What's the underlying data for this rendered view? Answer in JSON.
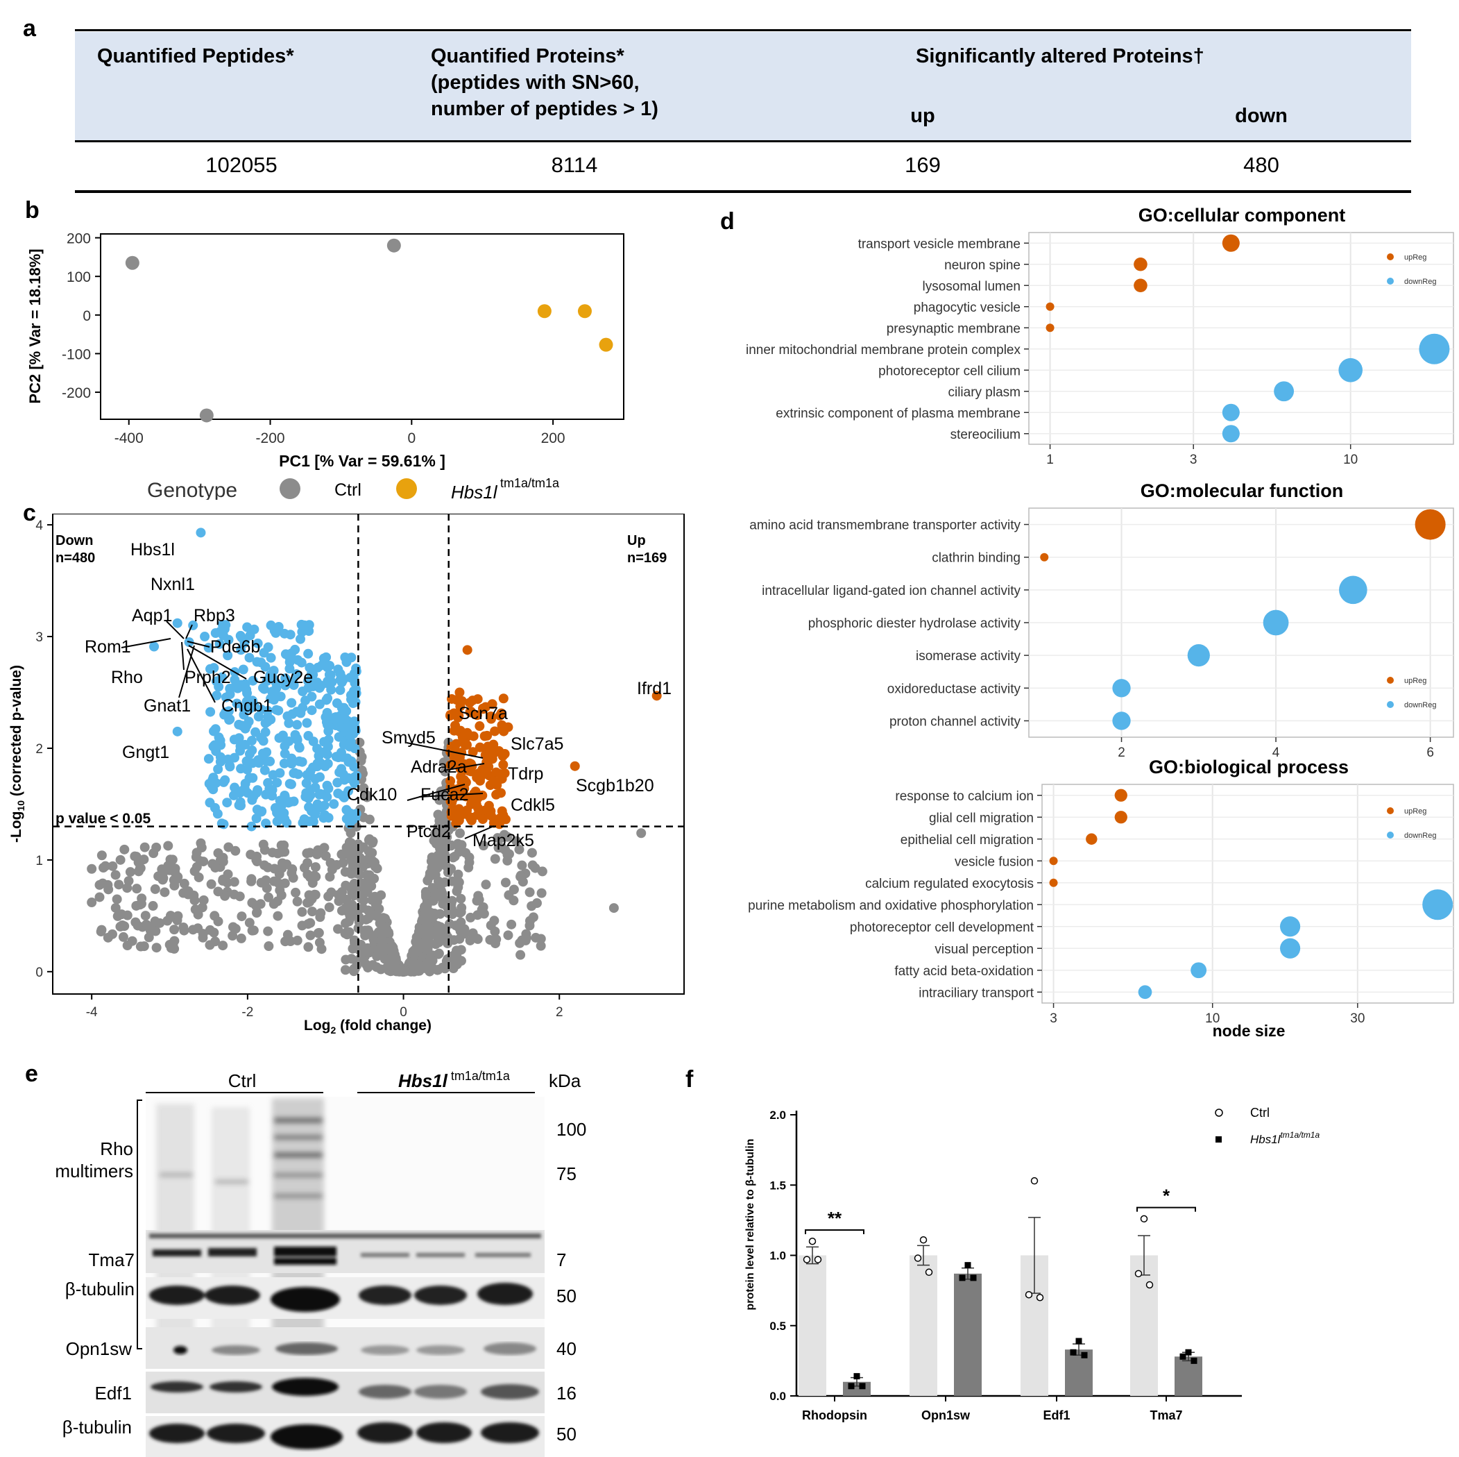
{
  "panels": {
    "a": "a",
    "b": "b",
    "c": "c",
    "d": "d",
    "e": "e",
    "f": "f"
  },
  "table": {
    "col1": "Quantified Peptides*",
    "col2_line1": "Quantified Proteins*",
    "col2_line2": "(peptides with SN>60,",
    "col2_line3": "number of peptides > 1)",
    "col3": "Significantly altered Proteins†",
    "sub_up": "up",
    "sub_down": "down",
    "values": [
      "102055",
      "8114",
      "169",
      "480"
    ]
  },
  "pca": {
    "ylabel": "PC2 [% Var = 18.18%]",
    "xlabel": "PC1 [% Var = 59.61% ]",
    "xticks": [
      "-400",
      "-200",
      "0",
      "200"
    ],
    "yticks": [
      "200",
      "100",
      "0",
      "-100",
      "-200"
    ],
    "legend_title": "Genotype",
    "legend_ctrl": "Ctrl",
    "legend_mut": "Hbs1l",
    "legend_mut_sup": "tm1a/tm1a",
    "colors": {
      "ctrl": "#8c8c8c",
      "mut": "#e8a20e"
    }
  },
  "volcano": {
    "ylabel_pre": "-Log",
    "ylabel_sub": "10",
    "ylabel_post": " (corrected p-value)",
    "xlabel_pre": "Log",
    "xlabel_sub": "2",
    "xlabel_post": " (fold change)",
    "xticks": [
      "-4",
      "-2",
      "0",
      "2"
    ],
    "yticks": [
      "4",
      "3",
      "2",
      "1",
      "0"
    ],
    "down_label": "Down",
    "down_n": "n=480",
    "up_label": "Up",
    "up_n": "n=169",
    "pvalue_label": "p value < 0.05",
    "genes": [
      "Hbs1l",
      "Nxnl1",
      "Aqp1",
      "Rbp3",
      "Rom1",
      "Pde6b",
      "Rho",
      "Prph2",
      "Gucy2e",
      "Gnat1",
      "Cngb1",
      "Gngt1",
      "Ifrd1",
      "Scn7a",
      "Smyd5",
      "Slc7a5",
      "Adra2a",
      "Tdrp",
      "Cdk10",
      "Fuca2",
      "Scgb1b20",
      "Cdkl5",
      "Ptcd2",
      "Map2k5"
    ],
    "colors": {
      "down": "#56b4e9",
      "up": "#d55e00",
      "ns": "#8c8c8c"
    }
  },
  "go_cc": {
    "title": "GO:cellular component",
    "terms": [
      "transport vesicle membrane",
      "neuron spine",
      "lysosomal lumen",
      "phagocytic vesicle",
      "presynaptic membrane",
      "inner mitochondrial membrane protein complex",
      "photoreceptor cell cilium",
      "ciliary plasm",
      "extrinsic component of plasma membrane",
      "stereocilium"
    ],
    "xticks": [
      "1",
      "3",
      "10"
    ],
    "legend_up": "upReg",
    "legend_down": "downReg"
  },
  "go_mf": {
    "title": "GO:molecular function",
    "terms": [
      "amino acid transmembrane transporter activity",
      "clathrin binding",
      "intracellular ligand-gated ion channel activity",
      "phosphoric diester hydrolase activity",
      "isomerase activity",
      "oxidoreductase activity",
      "proton channel activity"
    ],
    "xticks": [
      "2",
      "4",
      "6"
    ],
    "legend_up": "upReg",
    "legend_down": "downReg"
  },
  "go_bp": {
    "title": "GO:biological process",
    "terms": [
      "response to calcium ion",
      "glial cell migration",
      "epithelial cell migration",
      "vesicle fusion",
      "calcium regulated exocytosis",
      "purine metabolism and oxidative phosphorylation",
      "photoreceptor cell development",
      "visual perception",
      "fatty acid beta-oxidation",
      "intraciliary transport"
    ],
    "xticks": [
      "3",
      "10",
      "30"
    ],
    "xlabel": "node size",
    "legend_up": "upReg",
    "legend_down": "downReg"
  },
  "blot": {
    "group_ctrl": "Ctrl",
    "group_mut": "Hbs1l",
    "group_mut_sup": " tm1a/tm1a",
    "kda": "kDa",
    "rho_line1": "Rho",
    "rho_line2": "multimers",
    "tma7": "Tma7",
    "tubulin": "β-tubulin",
    "opn1sw": "Opn1sw",
    "edf1": "Edf1",
    "markers": [
      "100",
      "75",
      "7",
      "50",
      "40",
      "16",
      "50"
    ]
  },
  "chart_data": [
    {
      "type": "scatter",
      "xlabel": "PC1 [% Var = 59.61% ]",
      "ylabel": "PC2 [% Var = 18.18%]",
      "xlim": [
        -440,
        300
      ],
      "ylim": [
        -270,
        210
      ],
      "series": [
        {
          "name": "Ctrl",
          "points": [
            [
              -395,
              135
            ],
            [
              -25,
              180
            ],
            [
              -290,
              -260
            ]
          ]
        },
        {
          "name": "Hbs1l tm1a/tm1a",
          "points": [
            [
              188,
              10
            ],
            [
              245,
              10
            ],
            [
              275,
              -77
            ]
          ]
        }
      ]
    },
    {
      "type": "scatter",
      "xlim": [
        -4.5,
        3.6
      ],
      "ylim": [
        -0.2,
        4.1
      ],
      "thresholds": {
        "x": [
          -0.58,
          0.58
        ],
        "y": 1.3
      },
      "labeled_points": [
        {
          "gene": "Hbs1l",
          "x": -2.6,
          "y": 3.93,
          "group": "down"
        },
        {
          "gene": "Aqp1",
          "x": -2.9,
          "y": 3.12,
          "group": "down"
        },
        {
          "gene": "Rom1",
          "x": -3.2,
          "y": 2.91,
          "group": "down"
        },
        {
          "gene": "Gngt1",
          "x": -2.9,
          "y": 2.15,
          "group": "down"
        },
        {
          "gene": "Ifrd1",
          "x": 3.25,
          "y": 2.47,
          "group": "up"
        },
        {
          "gene": "Scgb1b20",
          "x": 2.2,
          "y": 1.84,
          "group": "up"
        }
      ]
    },
    {
      "type": "scatter",
      "title": "GO:cellular component",
      "xscale": "log",
      "xlim": [
        0.85,
        22
      ],
      "points": [
        {
          "term": "transport vesicle membrane",
          "x": 4,
          "reg": "upReg"
        },
        {
          "term": "neuron spine",
          "x": 2,
          "reg": "upReg"
        },
        {
          "term": "lysosomal lumen",
          "x": 2,
          "reg": "upReg"
        },
        {
          "term": "phagocytic vesicle",
          "x": 1,
          "reg": "upReg"
        },
        {
          "term": "presynaptic membrane",
          "x": 1,
          "reg": "upReg"
        },
        {
          "term": "inner mitochondrial membrane protein complex",
          "x": 19,
          "reg": "downReg"
        },
        {
          "term": "photoreceptor cell cilium",
          "x": 10,
          "reg": "downReg"
        },
        {
          "term": "ciliary plasm",
          "x": 6,
          "reg": "downReg"
        },
        {
          "term": "extrinsic component of plasma membrane",
          "x": 4,
          "reg": "downReg"
        },
        {
          "term": "stereocilium",
          "x": 4,
          "reg": "downReg"
        }
      ]
    },
    {
      "type": "scatter",
      "title": "GO:molecular function",
      "xlim": [
        0.8,
        6.3
      ],
      "points": [
        {
          "term": "amino acid transmembrane transporter activity",
          "x": 6,
          "reg": "upReg"
        },
        {
          "term": "clathrin binding",
          "x": 1,
          "reg": "upReg"
        },
        {
          "term": "intracellular ligand-gated ion channel activity",
          "x": 5,
          "reg": "downReg"
        },
        {
          "term": "phosphoric diester hydrolase activity",
          "x": 4,
          "reg": "downReg"
        },
        {
          "term": "isomerase activity",
          "x": 3,
          "reg": "downReg"
        },
        {
          "term": "oxidoreductase activity",
          "x": 2,
          "reg": "downReg"
        },
        {
          "term": "proton channel activity",
          "x": 2,
          "reg": "downReg"
        }
      ]
    },
    {
      "type": "scatter",
      "title": "GO:biological process",
      "xlabel": "node size",
      "xscale": "log",
      "xlim": [
        2.75,
        62
      ],
      "points": [
        {
          "term": "response to calcium ion",
          "x": 5,
          "reg": "upReg"
        },
        {
          "term": "glial cell migration",
          "x": 5,
          "reg": "upReg"
        },
        {
          "term": "epithelial cell migration",
          "x": 4,
          "reg": "upReg"
        },
        {
          "term": "vesicle fusion",
          "x": 3,
          "reg": "upReg"
        },
        {
          "term": "calcium regulated exocytosis",
          "x": 3,
          "reg": "upReg"
        },
        {
          "term": "purine metabolism and oxidative phosphorylation",
          "x": 55,
          "reg": "downReg"
        },
        {
          "term": "photoreceptor cell development",
          "x": 18,
          "reg": "downReg"
        },
        {
          "term": "visual perception",
          "x": 18,
          "reg": "downReg"
        },
        {
          "term": "fatty acid beta-oxidation",
          "x": 9,
          "reg": "downReg"
        },
        {
          "term": "intraciliary transport",
          "x": 6,
          "reg": "downReg"
        }
      ]
    },
    {
      "type": "bar",
      "ylabel": "protein level relative to β-tubulin",
      "ylim": [
        0,
        2.0
      ],
      "yticks": [
        "0.0",
        "0.5",
        "1.0",
        "1.5",
        "2.0"
      ],
      "categories": [
        "Rhodopsin",
        "Opn1sw",
        "Edf1",
        "Tma7"
      ],
      "series": [
        {
          "name": "Ctrl",
          "values": [
            1.0,
            1.0,
            1.0,
            1.0
          ],
          "errors": [
            0.06,
            0.07,
            0.27,
            0.14
          ],
          "points": [
            [
              1.1,
              0.97,
              0.97
            ],
            [
              1.11,
              0.98,
              0.88
            ],
            [
              1.53,
              0.72,
              0.7
            ],
            [
              1.26,
              0.87,
              0.79
            ]
          ]
        },
        {
          "name": "Hbs1l tm1a/tm1a",
          "values": [
            0.1,
            0.87,
            0.33,
            0.28
          ],
          "errors": [
            0.03,
            0.04,
            0.04,
            0.03
          ],
          "points": [
            [
              0.14,
              0.07,
              0.07
            ],
            [
              0.93,
              0.84,
              0.84
            ],
            [
              0.39,
              0.31,
              0.29
            ],
            [
              0.31,
              0.28,
              0.25
            ]
          ]
        }
      ],
      "significance": [
        "**",
        "",
        "",
        "*"
      ],
      "legend_ctrl": "Ctrl",
      "legend_mut": "Hbs1l",
      "legend_mut_sup": "tm1a/tm1a"
    }
  ]
}
